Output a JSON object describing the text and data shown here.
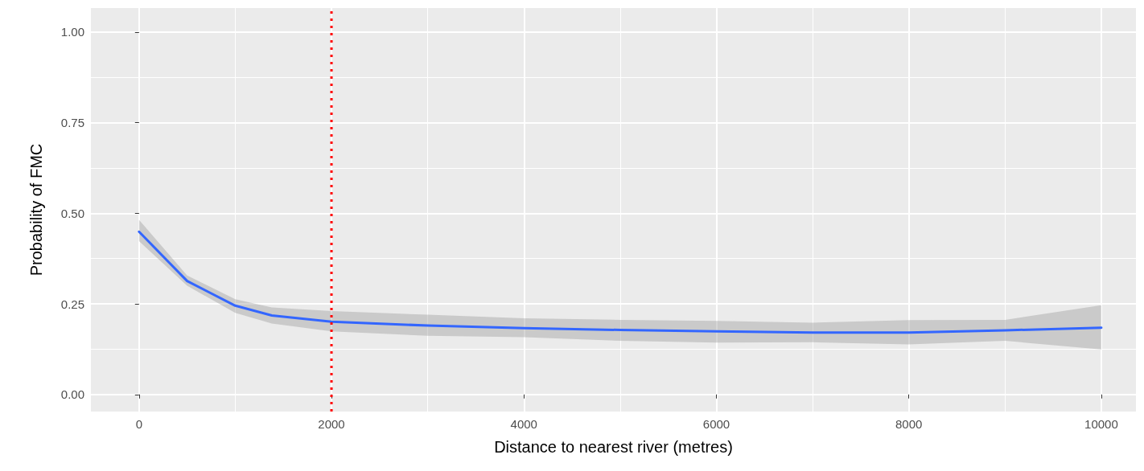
{
  "chart_data": {
    "type": "line",
    "xlabel": "Distance to nearest river (metres)",
    "ylabel": "Probability of FMC",
    "xlim": [
      -500,
      10360
    ],
    "ylim": [
      -0.047,
      1.066
    ],
    "xticks": [
      0,
      2000,
      4000,
      6000,
      8000,
      10000
    ],
    "yticks": [
      {
        "value": 0,
        "label": "0.00"
      },
      {
        "value": 0.25,
        "label": "0.25"
      },
      {
        "value": 0.5,
        "label": "0.50"
      },
      {
        "value": 0.75,
        "label": "0.75"
      },
      {
        "value": 1,
        "label": "1.00"
      }
    ],
    "grid": true,
    "marker": "none",
    "line_style": "solid",
    "series": [
      {
        "color": "#3366ff",
        "x": [
          0,
          500,
          1000,
          1380,
          2000,
          3000,
          4000,
          5000,
          6000,
          7000,
          8000,
          9000,
          10000
        ],
        "values": [
          0.449,
          0.313,
          0.245,
          0.218,
          0.201,
          0.19,
          0.183,
          0.178,
          0.174,
          0.171,
          0.171,
          0.177,
          0.184
        ],
        "lower": [
          0.423,
          0.3,
          0.225,
          0.196,
          0.174,
          0.162,
          0.158,
          0.148,
          0.143,
          0.144,
          0.138,
          0.148,
          0.124
        ],
        "upper": [
          0.482,
          0.328,
          0.263,
          0.24,
          0.23,
          0.22,
          0.21,
          0.206,
          0.203,
          0.198,
          0.205,
          0.206,
          0.246
        ]
      }
    ],
    "ref_lines": [
      {
        "axis": "x",
        "value": 2000,
        "color": "#ff0000",
        "line_style": "dotted"
      }
    ]
  }
}
